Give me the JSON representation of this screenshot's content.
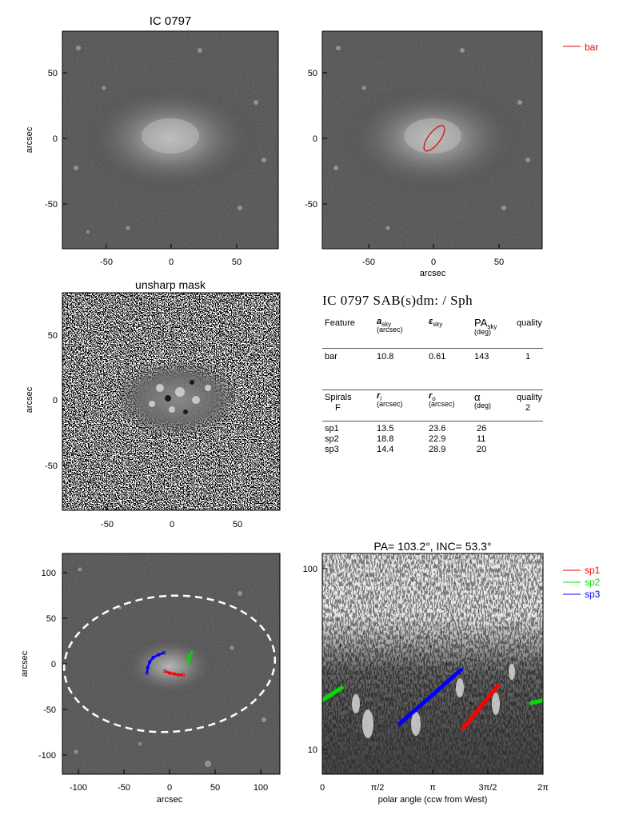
{
  "panels": {
    "top_left": {
      "title": "IC 0797",
      "ylabel": "arcsec",
      "xticks": [
        "-50",
        "0",
        "50"
      ],
      "yticks": [
        "50",
        "0",
        "-50"
      ]
    },
    "top_right": {
      "legend": "bar",
      "xlabel": "arcsec",
      "xticks": [
        "-50",
        "0",
        "50"
      ],
      "yticks": [
        "50",
        "0",
        "-50"
      ]
    },
    "mid_left": {
      "title": "unsharp mask",
      "ylabel": "arcsec",
      "xticks": [
        "-50",
        "0",
        "50"
      ],
      "yticks": [
        "50",
        "0",
        "-50"
      ]
    },
    "bot_left": {
      "xlabel": "arcsec",
      "ylabel": "arcsec",
      "xticks": [
        "-100",
        "-50",
        "0",
        "50",
        "100"
      ],
      "yticks": [
        "100",
        "50",
        "0",
        "-50",
        "-100"
      ]
    },
    "bot_right": {
      "title": "PA= 103.2°, INC=  53.3°",
      "xlabel": "polar angle (ccw from West)",
      "xticks": [
        "0",
        "π/2",
        "π",
        "3π/2",
        "2π"
      ],
      "yticks": [
        "100",
        "10"
      ],
      "legend": [
        "sp1",
        "sp2",
        "sp3"
      ]
    }
  },
  "table": {
    "heading": "IC 0797  SAB(s)dm:  / Sph",
    "bar_header": {
      "c1": "Feature",
      "c2": "a",
      "c2sub": "sky",
      "c2unit": "(arcsec)",
      "c3": "ε",
      "c3sub": "sky",
      "c4": "PA",
      "c4sub": "sky",
      "c4unit": "(deg)",
      "c5": "quality"
    },
    "bar_row": {
      "name": "bar",
      "a": "10.8",
      "e": "0.61",
      "pa": "143",
      "q": "1"
    },
    "sp_header": {
      "c1": "Spirals",
      "c1b": "F",
      "c2": "r",
      "c2sub": "i",
      "c2unit": "(arcsec)",
      "c3": "r",
      "c3sub": "o",
      "c3unit": "(arcsec)",
      "c4": "α",
      "c4unit": "(deg)",
      "c5": "quality",
      "c5b": "2"
    },
    "sp_rows": [
      {
        "name": "sp1",
        "ri": "13.5",
        "ro": "23.6",
        "alpha": "26"
      },
      {
        "name": "sp2",
        "ri": "18.8",
        "ro": "22.9",
        "alpha": "11"
      },
      {
        "name": "sp3",
        "ri": "14.4",
        "ro": "28.9",
        "alpha": "20"
      }
    ]
  },
  "chart_data": [
    {
      "type": "scatter",
      "title": "IC 0797",
      "xlabel": "",
      "ylabel": "arcsec",
      "xlim": [
        -85,
        85
      ],
      "ylim": [
        -85,
        85
      ],
      "image": "galaxy"
    },
    {
      "type": "scatter",
      "xlabel": "arcsec",
      "ylabel": "",
      "xlim": [
        -85,
        85
      ],
      "ylim": [
        -85,
        85
      ],
      "image": "galaxy",
      "series": [
        {
          "name": "bar",
          "color": "#e00000",
          "ellipse": {
            "a": 10.8,
            "ellipticity": 0.61,
            "pa_deg": 143
          }
        }
      ]
    },
    {
      "type": "scatter",
      "title": "unsharp mask",
      "xlabel": "",
      "ylabel": "arcsec",
      "xlim": [
        -85,
        85
      ],
      "ylim": [
        -85,
        85
      ],
      "image": "unsharp mask"
    },
    {
      "type": "scatter",
      "xlabel": "arcsec",
      "ylabel": "arcsec",
      "xlim": [
        -120,
        120
      ],
      "ylim": [
        -120,
        120
      ],
      "image": "galaxy",
      "series": [
        {
          "color": "#ff0000",
          "points": [
            [
              -5,
              -8
            ],
            [
              0,
              -10
            ],
            [
              5,
              -11
            ],
            [
              10,
              -12
            ],
            [
              15,
              -12
            ]
          ]
        },
        {
          "color": "#00dd00",
          "points": [
            [
              20,
              0
            ],
            [
              21,
              4
            ],
            [
              22,
              8
            ],
            [
              24,
              12
            ]
          ]
        },
        {
          "color": "#0000ff",
          "points": [
            [
              -25,
              -10
            ],
            [
              -24,
              -4
            ],
            [
              -22,
              2
            ],
            [
              -18,
              7
            ],
            [
              -12,
              10
            ],
            [
              -6,
              12
            ]
          ]
        }
      ]
    },
    {
      "type": "line",
      "title": "PA= 103.2°, INC=  53.3°",
      "xlabel": "polar angle (ccw from West)",
      "ylabel": "",
      "xlim": [
        0,
        6.2832
      ],
      "ylim": [
        7.5,
        130
      ],
      "yscale": "log",
      "image": "polar unwrapped",
      "series": [
        {
          "name": "sp1",
          "color": "#ff0000",
          "x": [
            4.0,
            5.0
          ],
          "y": [
            13.5,
            23.6
          ]
        },
        {
          "name": "sp2",
          "color": "#00dd00",
          "x": [
            0.0,
            0.55
          ],
          "y": [
            19.5,
            22.9
          ]
        },
        {
          "name": "sp2",
          "color": "#00dd00",
          "x": [
            5.95,
            6.2832
          ],
          "y": [
            18.8,
            19.5
          ]
        },
        {
          "name": "sp3",
          "color": "#0000ff",
          "x": [
            2.2,
            3.95
          ],
          "y": [
            14.4,
            28.9
          ]
        }
      ]
    }
  ]
}
